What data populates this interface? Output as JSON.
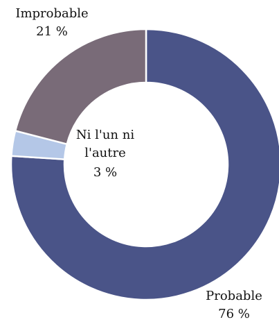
{
  "chart_data": {
    "type": "donut",
    "categories": [
      "Probable",
      "Ni l'un ni l'autre",
      "Improbable"
    ],
    "values": [
      76,
      3,
      21
    ],
    "value_labels": [
      "76 %",
      "3 %",
      "21 %"
    ],
    "colors": [
      "#4a5488",
      "#b4c7e7",
      "#796b78"
    ]
  }
}
